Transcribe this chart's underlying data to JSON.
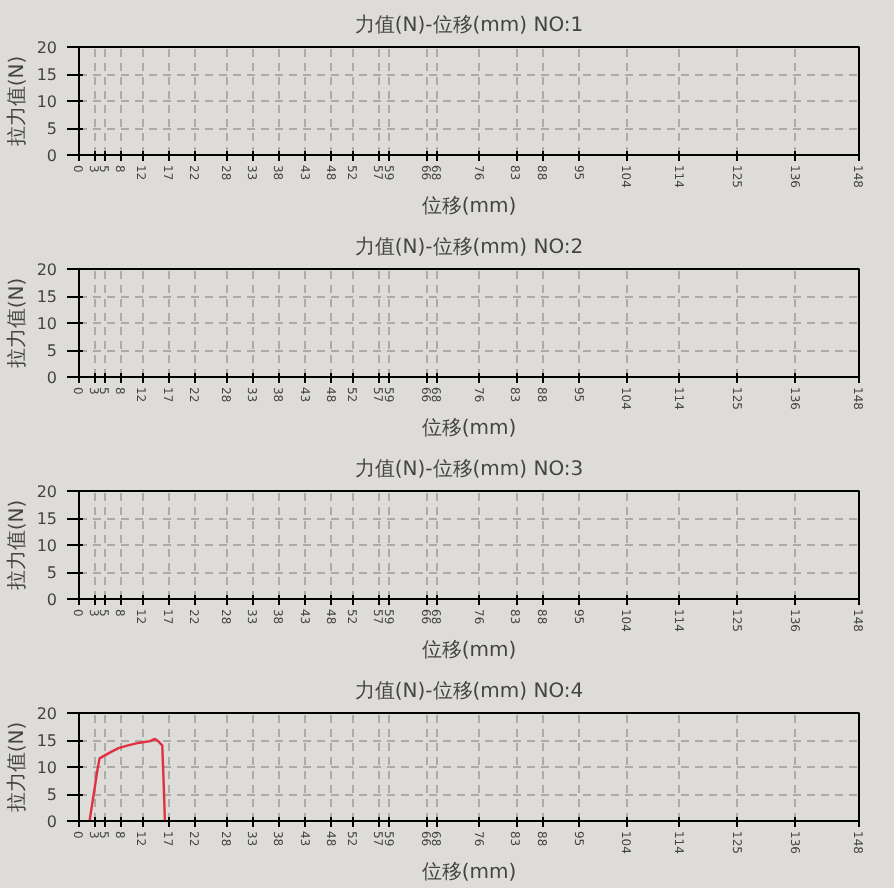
{
  "chart_data": [
    {
      "type": "line",
      "title": "力值(N)-位移(mm) NO:1",
      "xlabel": "位移(mm)",
      "ylabel": "拉力值(N)",
      "xlim": [
        0,
        148
      ],
      "ylim": [
        0,
        20
      ],
      "yticks": [
        0,
        5,
        10,
        15,
        20
      ],
      "grid": true,
      "xticks": [
        0,
        3,
        5,
        8,
        12,
        17,
        22,
        28,
        33,
        38,
        43,
        48,
        52,
        57,
        59,
        66,
        68,
        76,
        83,
        88,
        95,
        104,
        114,
        125,
        136,
        148
      ]
    },
    {
      "type": "line",
      "title": "力值(N)-位移(mm) NO:2",
      "xlabel": "位移(mm)",
      "ylabel": "拉力值(N)",
      "xlim": [
        0,
        148
      ],
      "ylim": [
        0,
        20
      ],
      "yticks": [
        0,
        5,
        10,
        15,
        20
      ],
      "grid": true,
      "xticks": [
        0,
        3,
        5,
        8,
        12,
        17,
        22,
        28,
        33,
        38,
        43,
        48,
        52,
        57,
        59,
        66,
        68,
        76,
        83,
        88,
        95,
        104,
        114,
        125,
        136,
        148
      ]
    },
    {
      "type": "line",
      "title": "力值(N)-位移(mm) NO:3",
      "xlabel": "位移(mm)",
      "ylabel": "拉力值(N)",
      "xlim": [
        0,
        148
      ],
      "ylim": [
        0,
        20
      ],
      "yticks": [
        0,
        5,
        10,
        15,
        20
      ],
      "grid": true,
      "xticks": [
        0,
        3,
        5,
        8,
        12,
        17,
        22,
        28,
        33,
        38,
        43,
        48,
        52,
        57,
        59,
        66,
        68,
        76,
        83,
        88,
        95,
        104,
        114,
        125,
        136,
        148
      ]
    },
    {
      "type": "line",
      "title": "力值(N)-位移(mm) NO:4",
      "xlabel": "位移(mm)",
      "ylabel": "拉力值(N)",
      "xlim": [
        0,
        148
      ],
      "ylim": [
        0,
        20
      ],
      "yticks": [
        0,
        5,
        10,
        15,
        20
      ],
      "grid": true,
      "line_style": "solid",
      "series": [
        {
          "color": "#e03040",
          "x": [
            2.0,
            2.8,
            3.5,
            3.9,
            5.0,
            6.1,
            7.5,
            9.3,
            11.5,
            13.5,
            14.4,
            15.0,
            15.8,
            16.1,
            16.3
          ],
          "values": [
            0,
            5,
            9.5,
            11.6,
            12.2,
            12.8,
            13.5,
            14.0,
            14.5,
            14.8,
            15.2,
            14.8,
            14.0,
            6,
            0
          ]
        }
      ],
      "xticks": [
        0,
        3,
        5,
        8,
        12,
        17,
        22,
        28,
        33,
        38,
        43,
        48,
        52,
        57,
        59,
        66,
        68,
        76,
        83,
        88,
        95,
        104,
        114,
        125,
        136,
        148
      ]
    }
  ]
}
